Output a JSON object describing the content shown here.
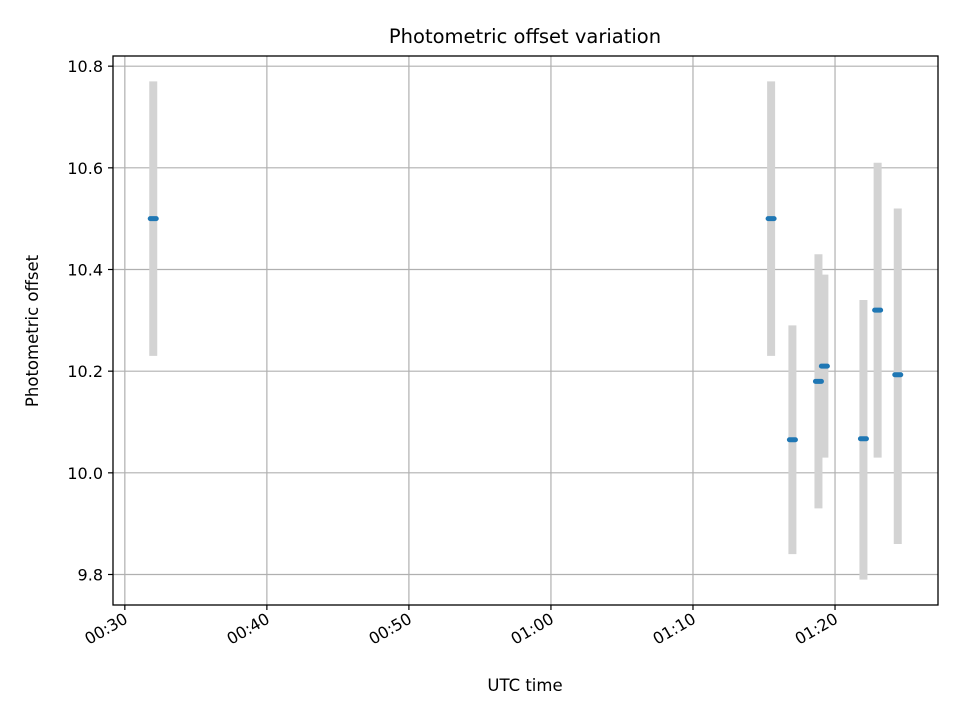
{
  "chart_data": {
    "type": "scatter",
    "title": "Photometric offset variation",
    "xlabel": "UTC time",
    "ylabel": "Photometric offset",
    "xlim": [
      "00:29:10",
      "01:27:15"
    ],
    "ylim": [
      9.74,
      10.82
    ],
    "x_ticks": [
      "00:30",
      "00:40",
      "00:50",
      "01:00",
      "01:10",
      "01:20"
    ],
    "y_ticks": [
      "9.8",
      "10.0",
      "10.2",
      "10.4",
      "10.6",
      "10.8"
    ],
    "grid": true,
    "colors": {
      "point": "#1f77b4",
      "error_bar": "#d3d3d3"
    },
    "series": [
      {
        "points": [
          {
            "x": "00:32:00",
            "y": 10.5,
            "yerr_low": 10.23,
            "yerr_high": 10.77
          },
          {
            "x": "01:15:30",
            "y": 10.5,
            "yerr_low": 10.23,
            "yerr_high": 10.77
          },
          {
            "x": "01:17:00",
            "y": 10.065,
            "yerr_low": 9.84,
            "yerr_high": 10.29
          },
          {
            "x": "01:18:50",
            "y": 10.18,
            "yerr_low": 9.93,
            "yerr_high": 10.43
          },
          {
            "x": "01:19:15",
            "y": 10.21,
            "yerr_low": 10.03,
            "yerr_high": 10.39
          },
          {
            "x": "01:22:00",
            "y": 10.067,
            "yerr_low": 9.79,
            "yerr_high": 10.34
          },
          {
            "x": "01:23:00",
            "y": 10.32,
            "yerr_low": 10.03,
            "yerr_high": 10.61
          },
          {
            "x": "01:24:25",
            "y": 10.193,
            "yerr_low": 9.86,
            "yerr_high": 10.52
          }
        ]
      }
    ]
  }
}
